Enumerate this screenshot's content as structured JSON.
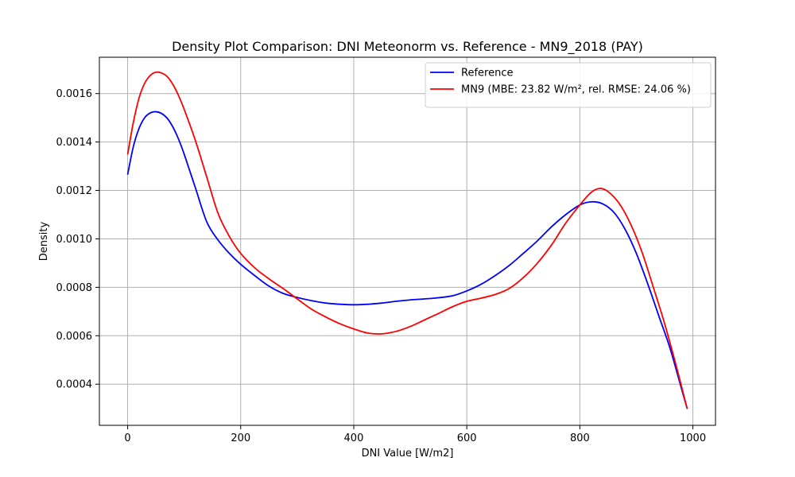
{
  "chart_data": {
    "type": "line",
    "title": "Density Plot Comparison: DNI Meteonorm vs. Reference - MN9_2018 (PAY)",
    "xlabel": "DNI Value [W/m2]",
    "ylabel": "Density",
    "xlim": [
      -50,
      1040
    ],
    "ylim": [
      0.00023,
      0.00175
    ],
    "xticks": [
      0,
      200,
      400,
      600,
      800,
      1000
    ],
    "xtick_labels": [
      "0",
      "200",
      "400",
      "600",
      "800",
      "1000"
    ],
    "yticks": [
      0.0004,
      0.0006,
      0.0008,
      0.001,
      0.0012,
      0.0014,
      0.0016
    ],
    "ytick_labels": [
      "0.0004",
      "0.0006",
      "0.0008",
      "0.0010",
      "0.0012",
      "0.0014",
      "0.0016"
    ],
    "grid": true,
    "legend_position": "top-right",
    "series": [
      {
        "name": "Reference",
        "color": "#0000ff",
        "points": [
          [
            0,
            0.001265
          ],
          [
            10,
            0.00138
          ],
          [
            20,
            0.001455
          ],
          [
            30,
            0.0015
          ],
          [
            40,
            0.00152
          ],
          [
            50,
            0.001525
          ],
          [
            60,
            0.001518
          ],
          [
            70,
            0.001498
          ],
          [
            80,
            0.001462
          ],
          [
            90,
            0.001412
          ],
          [
            100,
            0.00135
          ],
          [
            120,
            0.00121
          ],
          [
            140,
            0.00107
          ],
          [
            160,
            0.000995
          ],
          [
            180,
            0.00094
          ],
          [
            200,
            0.000895
          ],
          [
            225,
            0.000848
          ],
          [
            250,
            0.000805
          ],
          [
            275,
            0.000775
          ],
          [
            300,
            0.000758
          ],
          [
            325,
            0.000745
          ],
          [
            350,
            0.000735
          ],
          [
            375,
            0.00073
          ],
          [
            400,
            0.000728
          ],
          [
            425,
            0.00073
          ],
          [
            450,
            0.000735
          ],
          [
            475,
            0.000742
          ],
          [
            500,
            0.000748
          ],
          [
            525,
            0.000752
          ],
          [
            550,
            0.000757
          ],
          [
            575,
            0.000765
          ],
          [
            600,
            0.000785
          ],
          [
            625,
            0.000812
          ],
          [
            650,
            0.000848
          ],
          [
            675,
            0.00089
          ],
          [
            700,
            0.00094
          ],
          [
            725,
            0.000992
          ],
          [
            750,
            0.00105
          ],
          [
            775,
            0.0011
          ],
          [
            800,
            0.00114
          ],
          [
            820,
            0.001153
          ],
          [
            840,
            0.001145
          ],
          [
            860,
            0.00111
          ],
          [
            880,
            0.00104
          ],
          [
            900,
            0.00094
          ],
          [
            920,
            0.000815
          ],
          [
            940,
            0.00068
          ],
          [
            960,
            0.000545
          ],
          [
            980,
            0.00038
          ],
          [
            990,
            0.000298
          ]
        ]
      },
      {
        "name": "MN9 (MBE: 23.82 W/m², rel. RMSE: 24.06 %)",
        "color": "#ff0000",
        "points": [
          [
            0,
            0.001348
          ],
          [
            10,
            0.00148
          ],
          [
            20,
            0.00158
          ],
          [
            30,
            0.001642
          ],
          [
            40,
            0.001675
          ],
          [
            50,
            0.001688
          ],
          [
            60,
            0.001685
          ],
          [
            70,
            0.00167
          ],
          [
            80,
            0.001638
          ],
          [
            90,
            0.001592
          ],
          [
            100,
            0.001535
          ],
          [
            120,
            0.001405
          ],
          [
            140,
            0.001255
          ],
          [
            160,
            0.001105
          ],
          [
            180,
            0.00101
          ],
          [
            200,
            0.00094
          ],
          [
            225,
            0.00088
          ],
          [
            250,
            0.000835
          ],
          [
            275,
            0.000795
          ],
          [
            300,
            0.000752
          ],
          [
            325,
            0.00071
          ],
          [
            350,
            0.000678
          ],
          [
            375,
            0.00065
          ],
          [
            400,
            0.000628
          ],
          [
            425,
            0.000611
          ],
          [
            450,
            0.000608
          ],
          [
            475,
            0.000618
          ],
          [
            500,
            0.000638
          ],
          [
            525,
            0.000665
          ],
          [
            550,
            0.000692
          ],
          [
            575,
            0.00072
          ],
          [
            600,
            0.000742
          ],
          [
            625,
            0.000755
          ],
          [
            650,
            0.00077
          ],
          [
            675,
            0.000795
          ],
          [
            700,
            0.00084
          ],
          [
            725,
            0.0009
          ],
          [
            750,
            0.000975
          ],
          [
            775,
            0.001065
          ],
          [
            800,
            0.00114
          ],
          [
            820,
            0.001192
          ],
          [
            835,
            0.001208
          ],
          [
            850,
            0.001195
          ],
          [
            870,
            0.001145
          ],
          [
            890,
            0.00106
          ],
          [
            910,
            0.000945
          ],
          [
            930,
            0.0008
          ],
          [
            950,
            0.00065
          ],
          [
            970,
            0.00048
          ],
          [
            990,
            0.000298
          ]
        ]
      }
    ]
  }
}
